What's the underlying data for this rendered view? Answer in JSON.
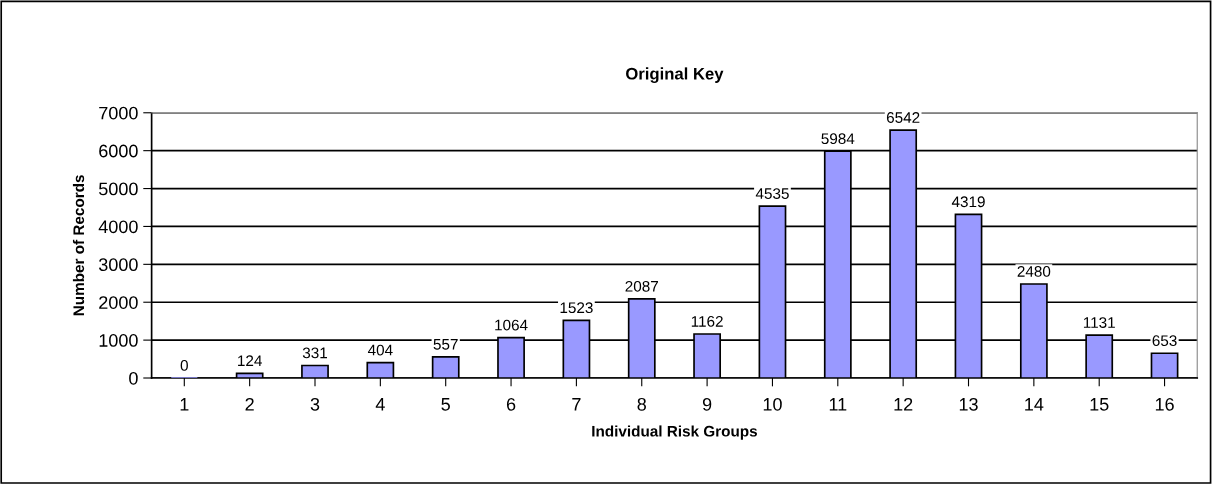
{
  "chart_data": {
    "type": "bar",
    "title": "Original Key",
    "xlabel": "Individual Risk Groups",
    "ylabel": "Number of Records",
    "categories": [
      "1",
      "2",
      "3",
      "4",
      "5",
      "6",
      "7",
      "8",
      "9",
      "10",
      "11",
      "12",
      "13",
      "14",
      "15",
      "16"
    ],
    "values": [
      0,
      124,
      331,
      404,
      557,
      1064,
      1523,
      2087,
      1162,
      4535,
      5984,
      6542,
      4319,
      2480,
      1131,
      653
    ],
    "color": "#9999ff",
    "ylim": [
      0,
      7000
    ],
    "yticks": [
      0,
      1000,
      2000,
      3000,
      4000,
      5000,
      6000,
      7000
    ],
    "grid": "y",
    "data_labels": true
  }
}
